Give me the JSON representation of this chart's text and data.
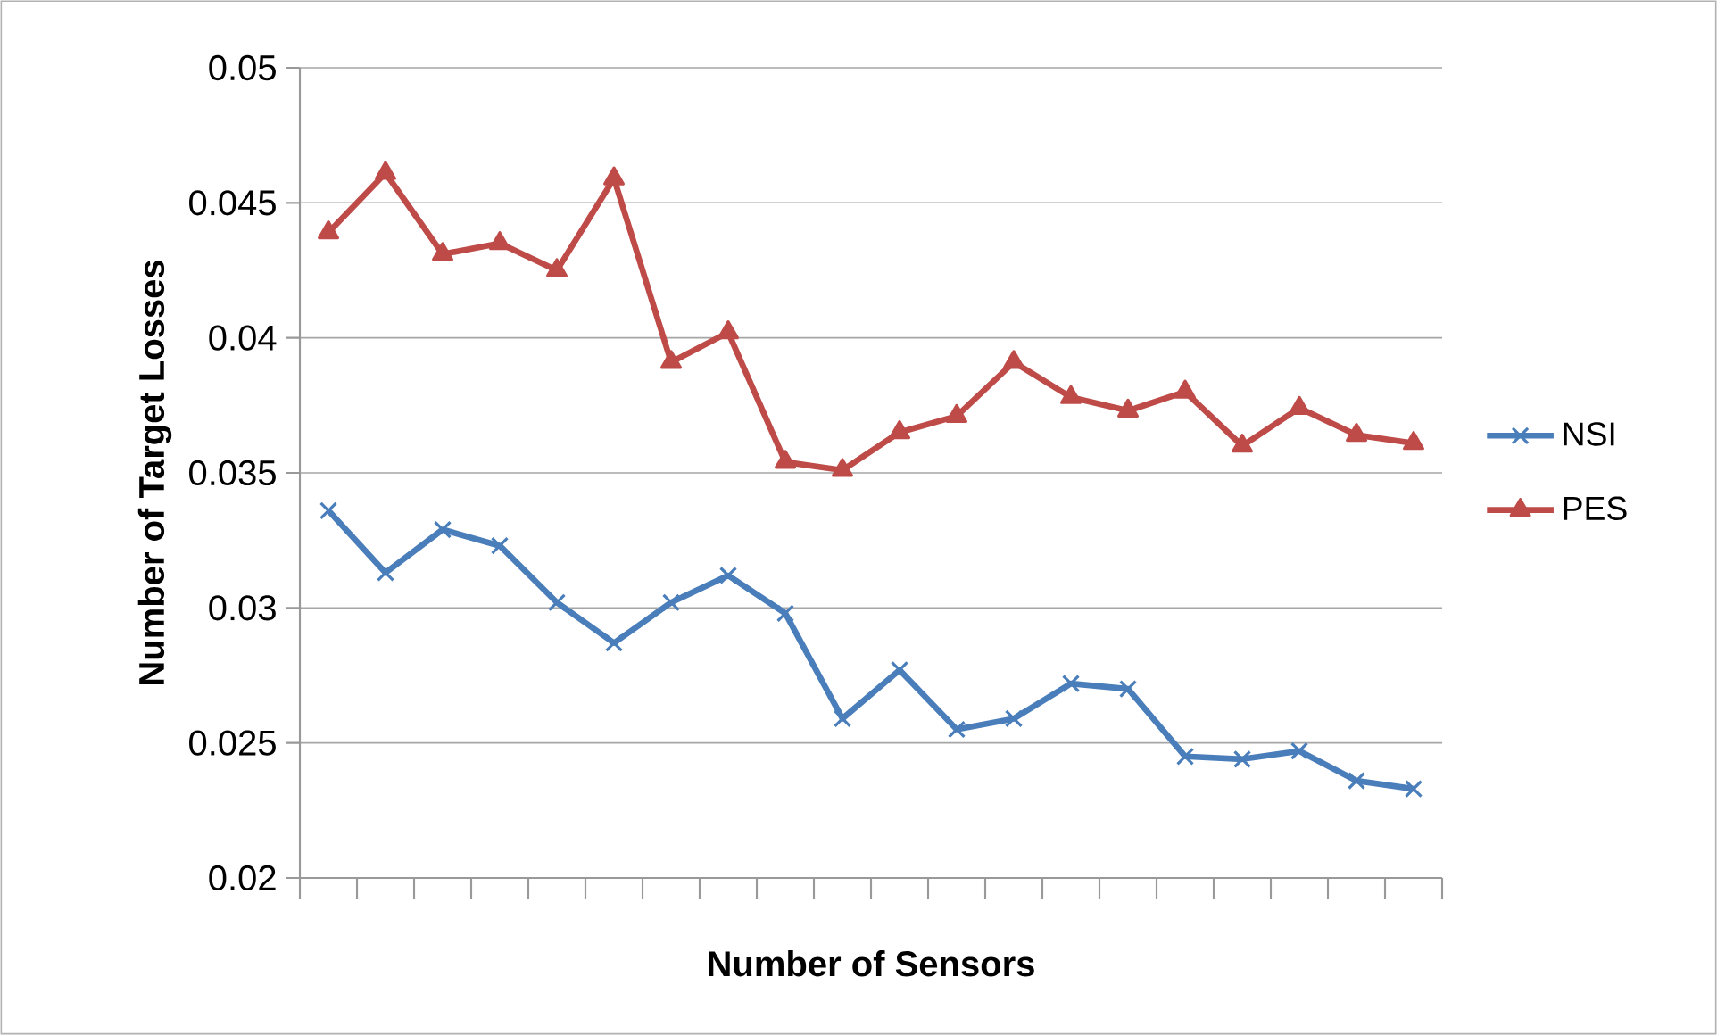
{
  "chart_data": {
    "type": "line",
    "xlabel": "Number of Sensors",
    "ylabel": "Number of Target Losses",
    "categories": [
      null,
      null,
      null,
      null,
      null,
      null,
      null,
      null,
      null,
      null,
      null,
      null,
      null,
      null,
      null,
      null,
      null,
      null,
      null,
      null
    ],
    "series": [
      {
        "name": "NSI",
        "color": "#4a7ebb",
        "marker": "cross",
        "values": [
          0.0336,
          0.0313,
          0.0329,
          0.0323,
          0.0302,
          0.0287,
          0.0302,
          0.0312,
          0.0298,
          0.0259,
          0.0277,
          0.0255,
          0.0259,
          0.0272,
          0.027,
          0.0245,
          0.0244,
          0.0247,
          0.0236,
          0.0233
        ]
      },
      {
        "name": "PES",
        "color": "#be4b48",
        "marker": "triangle",
        "values": [
          0.0439,
          0.0461,
          0.0431,
          0.0435,
          0.0425,
          0.0459,
          0.0391,
          0.0402,
          0.0354,
          0.0351,
          0.0365,
          0.0371,
          0.0391,
          0.0378,
          0.0373,
          0.038,
          0.036,
          0.0374,
          0.0364,
          0.0361
        ]
      }
    ],
    "ylim": [
      0.02,
      0.05
    ],
    "yticks": [
      0.02,
      0.025,
      0.03,
      0.035,
      0.04,
      0.045,
      0.05
    ],
    "grid": "y",
    "legend": "right",
    "tick_labels": "y"
  }
}
